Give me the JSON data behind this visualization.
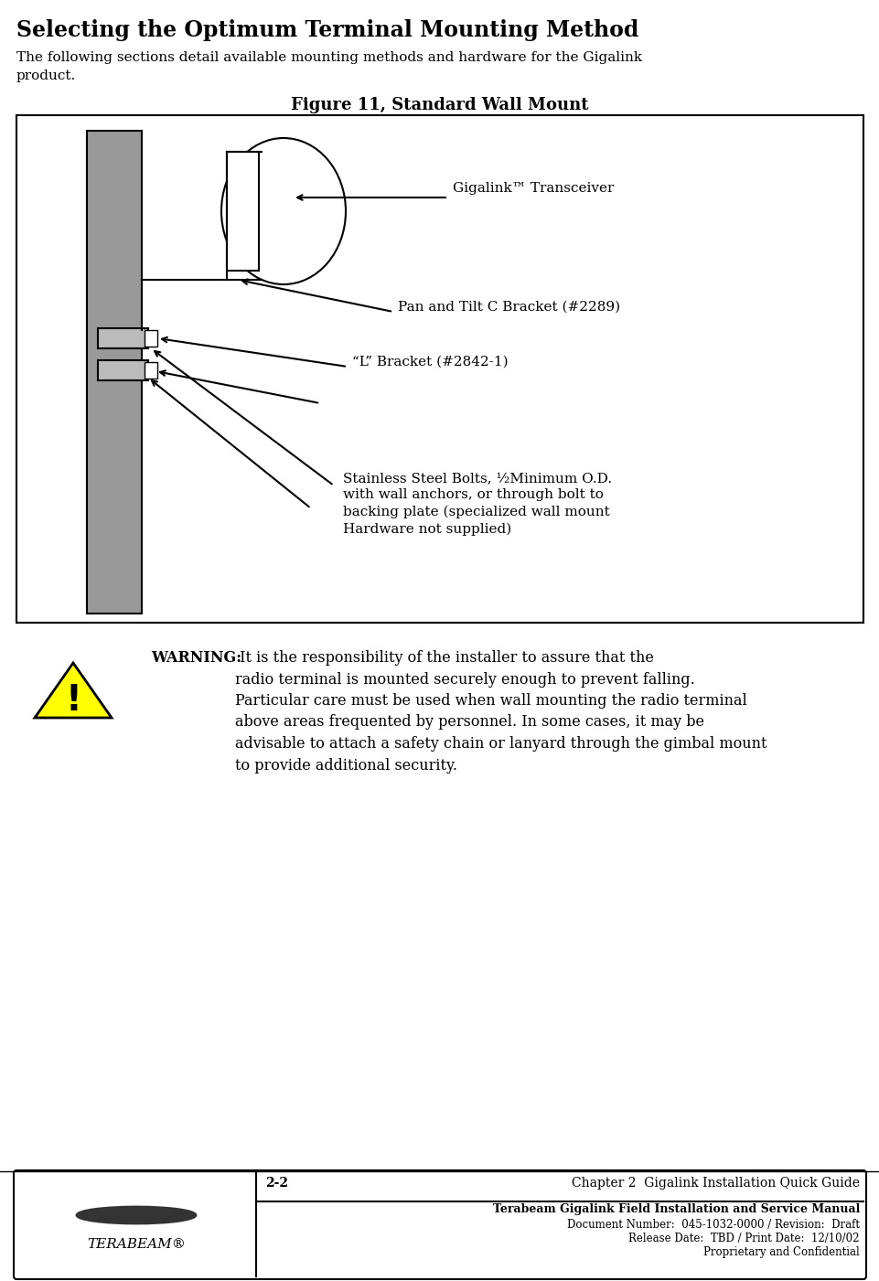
{
  "title": "Selecting the Optimum Terminal Mounting Method",
  "intro_text": "The following sections detail available mounting methods and hardware for the Gigalink\nproduct.",
  "figure_title": "Figure 11, Standard Wall Mount",
  "label1": "Gigalink™ Transceiver",
  "label2": "Pan and Tilt C Bracket (#2289)",
  "label3": "“L” Bracket (#2842-1)",
  "label4": "Stainless Steel Bolts, ½Minimum O.D.\nwith wall anchors, or through bolt to\nbacking plate (specialized wall mount\nHardware not supplied)",
  "warning_title": "WARNING:",
  "warning_text": " It is the responsibility of the installer to assure that the\nradio terminal is mounted securely enough to prevent falling.\nParticular care must be used when wall mounting the radio terminal\nabove areas frequented by personnel. In some cases, it may be\nadvisable to attach a safety chain or lanyard through the gimbal mount\nto provide additional security.",
  "footer_page": "2-2",
  "footer_chapter": "Chapter 2  Gigalink Installation Quick Guide",
  "footer_manual": "Terabeam Gigalink Field Installation and Service Manual",
  "footer_doc": "Document Number:  045-1032-0000 / Revision:  Draft",
  "footer_date": "Release Date:  TBD / Print Date:  12/10/02",
  "footer_prop": "Proprietary and Confidential",
  "bg_color": "#ffffff",
  "wall_color": "#999999",
  "box_border_color": "#000000",
  "figure_bg": "#ffffff"
}
